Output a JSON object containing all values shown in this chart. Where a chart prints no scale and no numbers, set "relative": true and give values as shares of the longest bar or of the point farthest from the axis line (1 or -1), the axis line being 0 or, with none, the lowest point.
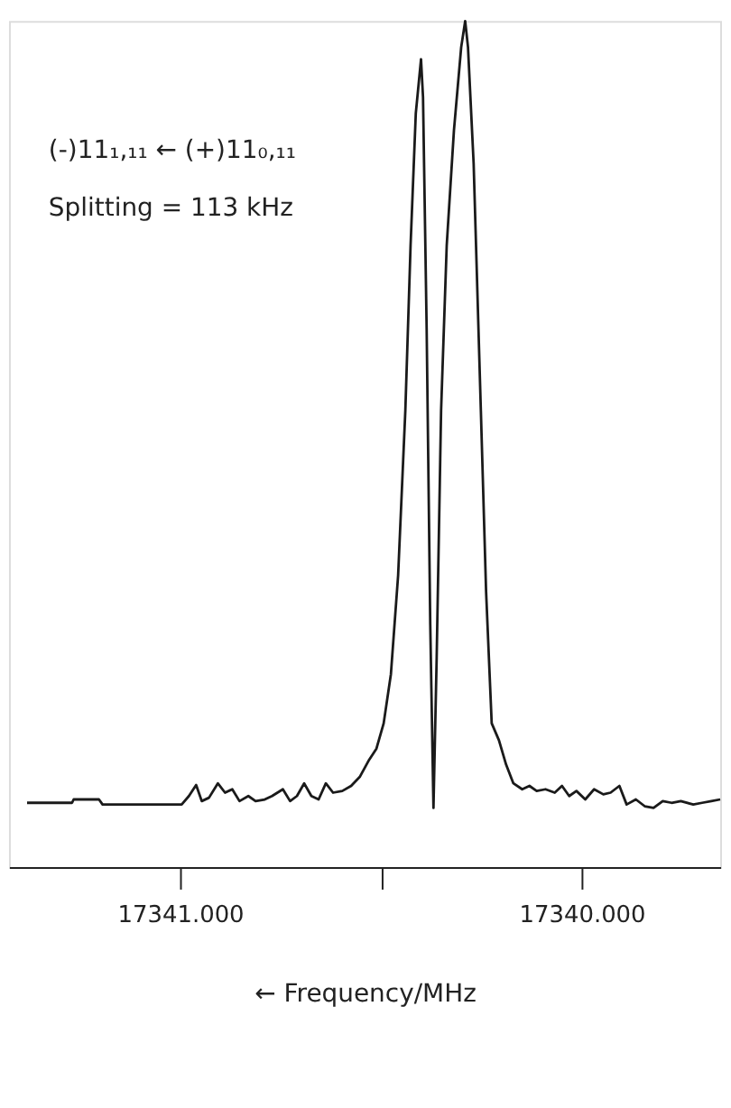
{
  "chart_data": {
    "type": "line",
    "relative": true,
    "xlabel": "← Frequency/MHz",
    "annotations": [
      "(-)11₁,₁₁ ← (+)11₀,₁₁",
      "Splitting = 113 kHz"
    ],
    "xlim": [
      17341.426,
      17339.655
    ],
    "xticks": [
      {
        "value": 17341,
        "label": "17341.000"
      },
      {
        "value": 17340.5,
        "label": null
      },
      {
        "value": 17340,
        "label": "17340.000"
      }
    ],
    "grid": false,
    "marker": "none",
    "line_style": "solid",
    "x": [
      17341.381,
      17341.269,
      17341.265,
      17341.202,
      17341.193,
      17340.996,
      17340.978,
      17340.96,
      17340.946,
      17340.928,
      17340.906,
      17340.888,
      17340.87,
      17340.852,
      17340.83,
      17340.812,
      17340.789,
      17340.771,
      17340.744,
      17340.726,
      17340.709,
      17340.691,
      17340.673,
      17340.655,
      17340.637,
      17340.619,
      17340.596,
      17340.574,
      17340.552,
      17340.529,
      17340.511,
      17340.493,
      17340.475,
      17340.457,
      17340.439,
      17340.426,
      17340.413,
      17340.4,
      17340.395,
      17340.386,
      17340.377,
      17340.369,
      17340.361,
      17340.35,
      17340.336,
      17340.318,
      17340.3,
      17340.29,
      17340.283,
      17340.269,
      17340.251,
      17340.238,
      17340.224,
      17340.206,
      17340.188,
      17340.17,
      17340.148,
      17340.13,
      17340.112,
      17340.09,
      17340.067,
      17340.049,
      17340.031,
      17340.013,
      17339.991,
      17339.969,
      17339.946,
      17339.928,
      17339.906,
      17339.888,
      17339.865,
      17339.843,
      17339.821,
      17339.798,
      17339.776,
      17339.753,
      17339.722,
      17339.7,
      17339.677,
      17339.655
    ],
    "series": [
      {
        "color": "#1a1a1a",
        "values": [
          0.076,
          0.076,
          0.08,
          0.08,
          0.074,
          0.074,
          0.084,
          0.097,
          0.078,
          0.082,
          0.099,
          0.088,
          0.092,
          0.078,
          0.084,
          0.078,
          0.08,
          0.084,
          0.092,
          0.078,
          0.084,
          0.099,
          0.084,
          0.08,
          0.099,
          0.088,
          0.09,
          0.096,
          0.107,
          0.127,
          0.14,
          0.17,
          0.228,
          0.345,
          0.54,
          0.735,
          0.891,
          0.955,
          0.91,
          0.637,
          0.287,
          0.07,
          0.248,
          0.54,
          0.735,
          0.871,
          0.969,
          1,
          0.969,
          0.832,
          0.54,
          0.326,
          0.17,
          0.15,
          0.121,
          0.099,
          0.092,
          0.096,
          0.09,
          0.092,
          0.088,
          0.096,
          0.084,
          0.09,
          0.08,
          0.092,
          0.086,
          0.088,
          0.096,
          0.074,
          0.08,
          0.072,
          0.07,
          0.078,
          0.076,
          0.078,
          0.074,
          0.076,
          0.078,
          0.08
        ]
      }
    ]
  }
}
